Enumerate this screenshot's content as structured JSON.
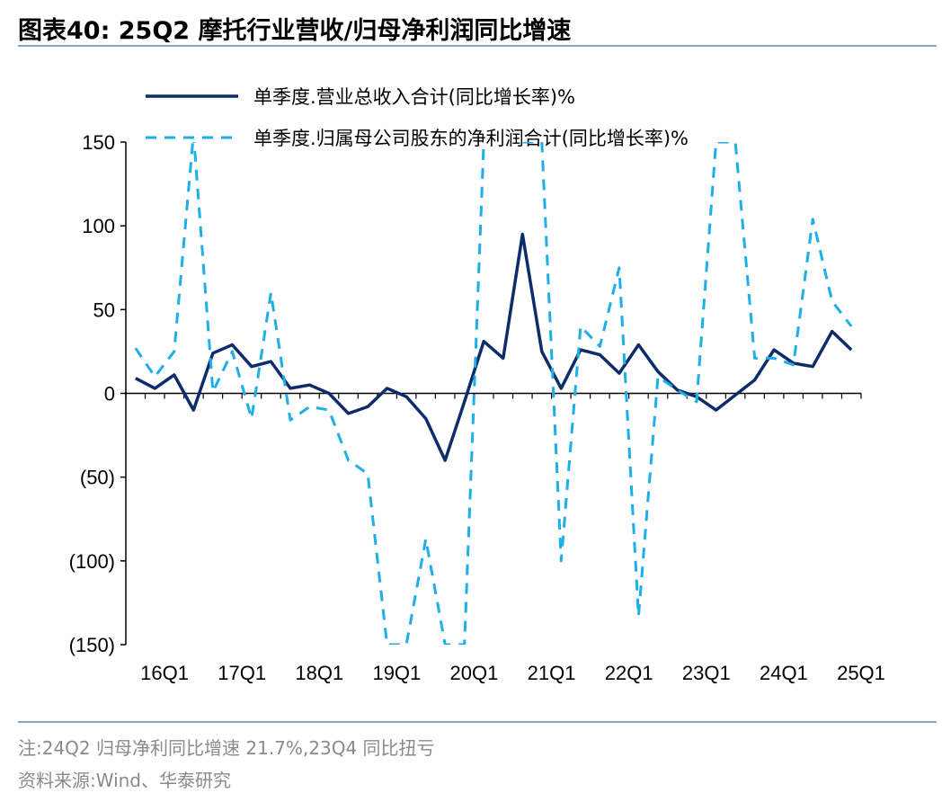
{
  "header": {
    "title": "图表40:  25Q2 摩托行业营收/归母净利润同比增速"
  },
  "footer": {
    "note": "注:24Q2 归母净利同比增速 21.7%,23Q4 同比扭亏",
    "source": "资料来源:Wind、华泰研究"
  },
  "colors": {
    "revenue": "#0d2c6b",
    "profit": "#1eaee8",
    "axis": "#000000",
    "rule": "#8ea0c4"
  },
  "chart_data": {
    "type": "line",
    "x": [
      "16Q1",
      "16Q2",
      "16Q3",
      "16Q4",
      "17Q1",
      "17Q2",
      "17Q3",
      "17Q4",
      "18Q1",
      "18Q2",
      "18Q3",
      "18Q4",
      "19Q1",
      "19Q2",
      "19Q3",
      "19Q4",
      "20Q1",
      "20Q2",
      "20Q3",
      "20Q4",
      "21Q1",
      "21Q2",
      "21Q3",
      "21Q4",
      "22Q1",
      "22Q2",
      "22Q3",
      "22Q4",
      "23Q1",
      "23Q2",
      "23Q3",
      "23Q4",
      "24Q1",
      "24Q2",
      "24Q3",
      "24Q4",
      "25Q1",
      "25Q2"
    ],
    "xtick_labels": [
      "16Q1",
      "17Q1",
      "18Q1",
      "19Q1",
      "20Q1",
      "21Q1",
      "22Q1",
      "23Q1",
      "24Q1",
      "25Q1"
    ],
    "ytick_labels": [
      "150",
      "100",
      "50",
      "0",
      "(50)",
      "(100)",
      "(150)"
    ],
    "ylim": [
      -150,
      150
    ],
    "series": [
      {
        "name": "单季度.营业总收入合计(同比增长率)%",
        "style": "solid",
        "values": [
          9,
          3,
          11,
          -10,
          24,
          29,
          16,
          19,
          3,
          5,
          0,
          -12,
          -8,
          3,
          -2,
          -15,
          -40,
          -5,
          31,
          21,
          95,
          25,
          3,
          26,
          23,
          12,
          29,
          13,
          2,
          -2,
          -10,
          -1,
          8,
          26,
          18,
          16,
          37,
          26
        ]
      },
      {
        "name": "单季度.归属母公司股东的净利润合计(同比增长率)%",
        "style": "dashed",
        "values": [
          27,
          10,
          25,
          155,
          1,
          25,
          -15,
          60,
          -16,
          -8,
          -10,
          -40,
          -48,
          -150,
          -150,
          -87,
          -150,
          -150,
          150,
          null,
          150,
          150,
          -100,
          40,
          28,
          75,
          -133,
          10,
          2,
          -5,
          150,
          150,
          21,
          21,
          17,
          104,
          55,
          40
        ]
      }
    ]
  }
}
